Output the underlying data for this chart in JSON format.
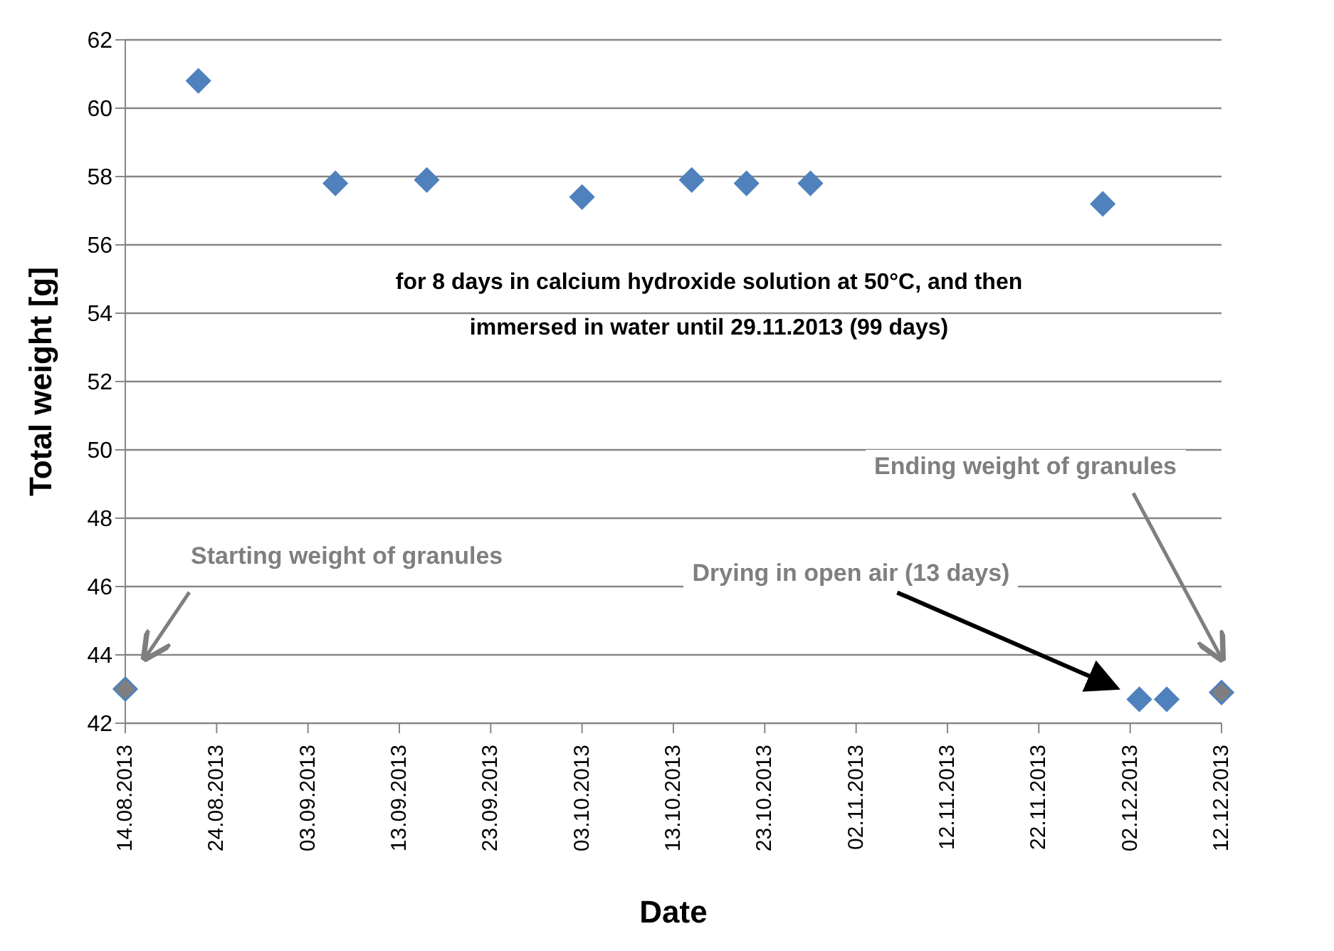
{
  "chart_data": {
    "type": "scatter",
    "xlabel": "Date",
    "ylabel": "Total weight [g]",
    "x": [
      "2013-08-14",
      "2013-08-22",
      "2013-09-06",
      "2013-09-16",
      "2013-10-03",
      "2013-10-15",
      "2013-10-21",
      "2013-10-28",
      "2013-11-29",
      "2013-12-03",
      "2013-12-06",
      "2013-12-12"
    ],
    "series": [
      {
        "color": "#4f81bd",
        "colors": [
          "#7f7f7f",
          "#4f81bd",
          "#4f81bd",
          "#4f81bd",
          "#4f81bd",
          "#4f81bd",
          "#4f81bd",
          "#4f81bd",
          "#4f81bd",
          "#4f81bd",
          "#4f81bd",
          "#7f7f7f"
        ],
        "values": [
          43.0,
          60.8,
          57.8,
          57.9,
          57.4,
          57.9,
          57.8,
          57.8,
          57.2,
          42.7,
          42.7,
          42.9
        ]
      }
    ],
    "xlim": [
      "2013-08-14",
      "2013-12-12"
    ],
    "xticks": [
      {
        "value": "2013-08-14",
        "label": "14.08.2013"
      },
      {
        "value": "2013-08-24",
        "label": "24.08.2013"
      },
      {
        "value": "2013-09-03",
        "label": "03.09.2013"
      },
      {
        "value": "2013-09-13",
        "label": "13.09.2013"
      },
      {
        "value": "2013-09-23",
        "label": "23.09.2013"
      },
      {
        "value": "2013-10-03",
        "label": "03.10.2013"
      },
      {
        "value": "2013-10-13",
        "label": "13.10.2013"
      },
      {
        "value": "2013-10-23",
        "label": "23.10.2013"
      },
      {
        "value": "2013-11-02",
        "label": "02.11.2013"
      },
      {
        "value": "2013-11-12",
        "label": "12.11.2013"
      },
      {
        "value": "2013-11-22",
        "label": "22.11.2013"
      },
      {
        "value": "2013-12-02",
        "label": "02.12.2013"
      },
      {
        "value": "2013-12-12",
        "label": "12.12.2013"
      }
    ],
    "ylim": [
      42,
      62
    ],
    "yticks": [
      42,
      44,
      46,
      48,
      50,
      52,
      54,
      56,
      58,
      60,
      62
    ],
    "grid": "y",
    "marker": "diamond",
    "annotations": [
      "for 8 days in calcium hydroxide solution at 50°C, and then immersed in water until 29.11.2013 (99 days)",
      "Starting weight of granules",
      "Drying in open air (13 days)",
      "Ending weight of granules"
    ]
  }
}
